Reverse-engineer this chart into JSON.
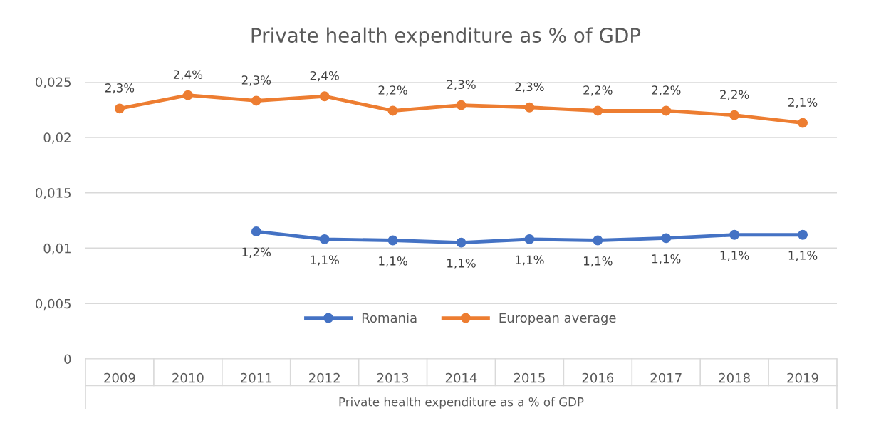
{
  "chart_data": {
    "type": "line",
    "title": "Private health expenditure as % of GDP",
    "xlabel": "Private health expenditure as a % of GDP",
    "categories": [
      "2009",
      "2010",
      "2011",
      "2012",
      "2013",
      "2014",
      "2015",
      "2016",
      "2017",
      "2018",
      "2019"
    ],
    "series": [
      {
        "name": "Romania",
        "color": "#4472c4",
        "values": [
          null,
          null,
          0.0115,
          0.0108,
          0.0107,
          0.0105,
          0.0108,
          0.0107,
          0.0109,
          0.0112,
          0.0112
        ],
        "value_labels": [
          null,
          null,
          "1,2%",
          "1,1%",
          "1,1%",
          "1,1%",
          "1,1%",
          "1,1%",
          "1,1%",
          "1,1%",
          "1,1%"
        ]
      },
      {
        "name": "European average",
        "color": "#ed7d31",
        "values": [
          0.0226,
          0.0238,
          0.0233,
          0.0237,
          0.0224,
          0.0229,
          0.0227,
          0.0224,
          0.0224,
          0.022,
          0.0213
        ],
        "value_labels": [
          "2,3%",
          "2,4%",
          "2,3%",
          "2,4%",
          "2,2%",
          "2,3%",
          "2,3%",
          "2,2%",
          "2,2%",
          "2,2%",
          "2,1%"
        ]
      }
    ],
    "ylim": [
      0,
      0.025
    ],
    "yticks": [
      {
        "value": 0,
        "label": "0"
      },
      {
        "value": 0.005,
        "label": "0,005"
      },
      {
        "value": 0.01,
        "label": "0,01"
      },
      {
        "value": 0.015,
        "label": "0,015"
      },
      {
        "value": 0.02,
        "label": "0,02"
      },
      {
        "value": 0.025,
        "label": "0,025"
      }
    ],
    "grid": "y",
    "legend": "bottom",
    "marker": "circle",
    "line_style": "solid"
  }
}
